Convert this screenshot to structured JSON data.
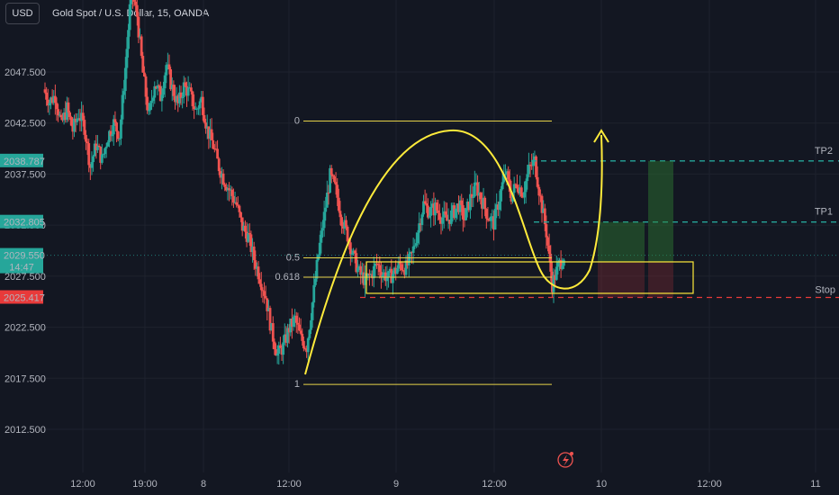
{
  "header": {
    "currency_button": "USD",
    "symbol_title": "Gold Spot / U.S. Dollar, 15, OANDA"
  },
  "colors": {
    "background": "#131722",
    "up": "#26a69a",
    "down": "#ef5350",
    "fib": "#e6d34a",
    "target": "#26a69a",
    "stop": "#e83a3a",
    "arc": "#ffeb3b"
  },
  "chart_data": {
    "type": "candlestick",
    "title": "Gold Spot / U.S. Dollar, 15, OANDA",
    "ylim": [
      2010.5,
      2057.5
    ],
    "y_ticks": [
      "2012.500",
      "2017.500",
      "2022.500",
      "2027.500",
      "2032.500",
      "2037.500",
      "2042.500",
      "2047.500"
    ],
    "x_ticks": [
      "12:00",
      "19:00",
      "8",
      "12:00",
      "9",
      "12:00",
      "10",
      "12:00",
      "11"
    ],
    "price_labels": [
      {
        "text": "2038.787",
        "value": 2038.787,
        "color": "#26a69a"
      },
      {
        "text": "2032.805",
        "value": 2032.805,
        "color": "#26a69a"
      },
      {
        "text": "2029.550",
        "value": 2029.55,
        "color": "#26a69a",
        "sub": "14:47"
      },
      {
        "text": "2025.417",
        "value": 2025.417,
        "color": "#e83a3a"
      }
    ],
    "fib_levels": [
      {
        "label": "0",
        "value": 2042.7
      },
      {
        "label": "0.5",
        "value": 2029.3
      },
      {
        "label": "0.618",
        "value": 2027.4
      },
      {
        "label": "1",
        "value": 2016.9
      }
    ],
    "annotations": {
      "tp2": {
        "label": "TP2",
        "value": 2038.787
      },
      "tp1": {
        "label": "TP1",
        "value": 2032.805
      },
      "stop": {
        "label": "Stop",
        "value": 2025.417
      }
    },
    "price_path": [
      2045.8,
      2044.6,
      2045.2,
      2042.3,
      2043.9,
      2041.8,
      2043.4,
      2042.1,
      2038.2,
      2040.4,
      2038.9,
      2041.2,
      2042.5,
      2041.3,
      2047.9,
      2055.6,
      2053.0,
      2047.4,
      2043.1,
      2046.5,
      2045.1,
      2048.2,
      2045.9,
      2044.3,
      2046.1,
      2045.4,
      2043.7,
      2044.8,
      2041.9,
      2040.3,
      2038.2,
      2036.8,
      2035.7,
      2034.5,
      2032.3,
      2031.4,
      2029.2,
      2027.4,
      2025.5,
      2022.1,
      2019.8,
      2020.6,
      2022.4,
      2023.3,
      2021.4,
      2020.6,
      2024.9,
      2029.6,
      2033.4,
      2037.3,
      2035.9,
      2033.2,
      2031.5,
      2029.4,
      2027.8,
      2027.1,
      2027.6,
      2028.7,
      2027.8,
      2027.3,
      2027.9,
      2028.6,
      2028.3,
      2029.5,
      2032.0,
      2034.6,
      2033.8,
      2034.2,
      2033.4,
      2032.9,
      2033.7,
      2034.5,
      2033.1,
      2035.1,
      2036.3,
      2034.9,
      2033.4,
      2032.7,
      2035.2,
      2037.7,
      2035.4,
      2036.6,
      2035.7,
      2037.9,
      2038.8,
      2035.1,
      2031.8,
      2026.7,
      2028.4,
      2029.55
    ]
  }
}
